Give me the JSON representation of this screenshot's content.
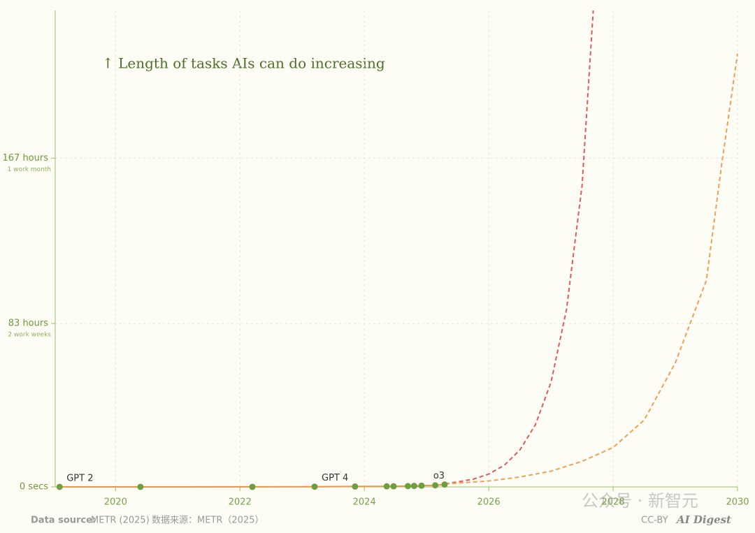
{
  "chart_data": {
    "type": "line",
    "annotation": "↑  Length of tasks AIs can do increasing",
    "xlim": [
      2019.03,
      2030
    ],
    "xticks": [
      2020,
      2022,
      2024,
      2026,
      2028,
      2030
    ],
    "ylim": [
      0,
      242
    ],
    "yticks": [
      {
        "value": 0,
        "label": "0 secs"
      },
      {
        "value": 83,
        "label": "83 hours",
        "note": "2 work weeks"
      },
      {
        "value": 167,
        "label": "167 hours",
        "note": "1 work month"
      }
    ],
    "grid": true,
    "points": {
      "color": "#6d9e3f",
      "line_color": "#e8964a",
      "x": [
        2019.1,
        2020.4,
        2022.2,
        2023.2,
        2023.85,
        2024.36,
        2024.47,
        2024.7,
        2024.8,
        2024.92,
        2025.14,
        2025.29
      ],
      "values": [
        0.001,
        0.01,
        0.02,
        0.1,
        0.2,
        0.3,
        0.3,
        0.4,
        0.5,
        0.6,
        0.8,
        1.2
      ],
      "labels": [
        "GPT 2",
        null,
        null,
        "GPT 4",
        null,
        null,
        null,
        null,
        null,
        null,
        null,
        "o3"
      ]
    },
    "series": [
      {
        "color": "#e05a5a",
        "dashed": true,
        "x": [
          2025.3,
          2025.75,
          2026,
          2026.25,
          2026.5,
          2026.75,
          2027,
          2027.25,
          2027.5,
          2027.68
        ],
        "values": [
          1.5,
          3.9,
          6.5,
          11,
          18.7,
          31.5,
          53,
          90,
          153,
          242
        ]
      },
      {
        "color": "#f0a050",
        "dashed": true,
        "x": [
          2025.3,
          2026,
          2026.5,
          2027,
          2027.5,
          2028,
          2028.5,
          2029,
          2029.5,
          2029.75,
          2030
        ],
        "values": [
          1.5,
          3,
          5,
          8,
          13,
          20,
          34,
          63,
          105,
          165,
          220
        ]
      }
    ],
    "footer": {
      "source_label": "Data source:",
      "source": "METR (2025)",
      "source_cn": "数据来源：METR（2025）",
      "watermark": "公众号 · 新智元",
      "license": "CC-BY",
      "brand": "AI Digest"
    }
  }
}
